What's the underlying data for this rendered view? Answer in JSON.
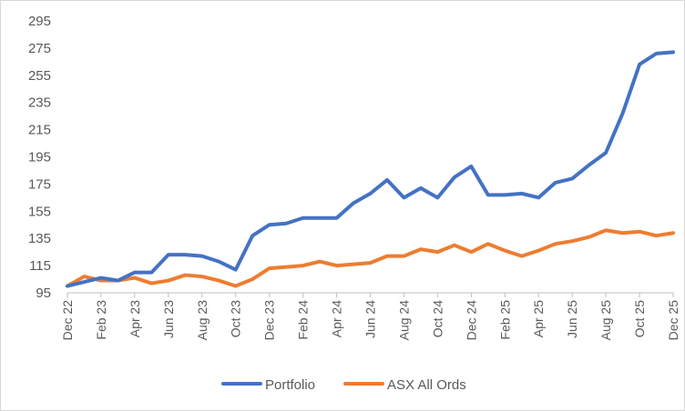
{
  "chart_data": {
    "type": "line",
    "categories": [
      "Dec 22",
      "Jan 23",
      "Feb 23",
      "Mar 23",
      "Apr 23",
      "May 23",
      "Jun 23",
      "Jul 23",
      "Aug 23",
      "Sep 23",
      "Oct 23",
      "Nov 23",
      "Dec 23",
      "Jan 24",
      "Feb 24",
      "Mar 24",
      "Apr 24",
      "May 24",
      "Jun 24",
      "Jul 24",
      "Aug 24",
      "Sep 24",
      "Oct 24",
      "Nov 24",
      "Dec 24",
      "Jan 25",
      "Feb 25",
      "Mar 25",
      "Apr 25",
      "May 25",
      "Jun 25",
      "Jul 25",
      "Aug 25",
      "Sep 25",
      "Oct 25",
      "Nov 25",
      "Dec 25"
    ],
    "tick_labels": [
      "Dec 22",
      "",
      "Feb 23",
      "",
      "Apr 23",
      "",
      "Jun 23",
      "",
      "Aug 23",
      "",
      "Oct 23",
      "",
      "Dec 23",
      "",
      "Feb 24",
      "",
      "Apr 24",
      "",
      "Jun 24",
      "",
      "Aug 24",
      "",
      "Oct 24",
      "",
      "Dec 24",
      "",
      "Feb 25",
      "",
      "Apr 25",
      "",
      "Jun 25",
      "",
      "Aug 25",
      "",
      "Oct 25",
      "",
      "Dec 25"
    ],
    "series": [
      {
        "name": "Portfolio",
        "color": "#4472c4",
        "values": [
          100,
          103,
          106,
          104,
          110,
          110,
          123,
          123,
          122,
          118,
          112,
          137,
          145,
          146,
          150,
          150,
          150,
          161,
          168,
          178,
          165,
          172,
          165,
          180,
          188,
          167,
          167,
          168,
          165,
          176,
          179,
          189,
          198,
          227,
          263,
          271,
          272
        ]
      },
      {
        "name": "ASX All Ords",
        "color": "#ed7d31",
        "values": [
          100,
          107,
          104,
          104,
          106,
          102,
          104,
          108,
          107,
          104,
          100,
          105,
          113,
          114,
          115,
          118,
          115,
          116,
          117,
          122,
          122,
          127,
          125,
          130,
          125,
          131,
          126,
          122,
          126,
          131,
          133,
          136,
          141,
          139,
          140,
          137,
          139
        ]
      }
    ],
    "y_ticks": [
      95,
      115,
      135,
      155,
      175,
      195,
      215,
      235,
      255,
      275,
      295
    ],
    "ylim": [
      95,
      295
    ],
    "grid": false,
    "legend_position": "bottom"
  }
}
